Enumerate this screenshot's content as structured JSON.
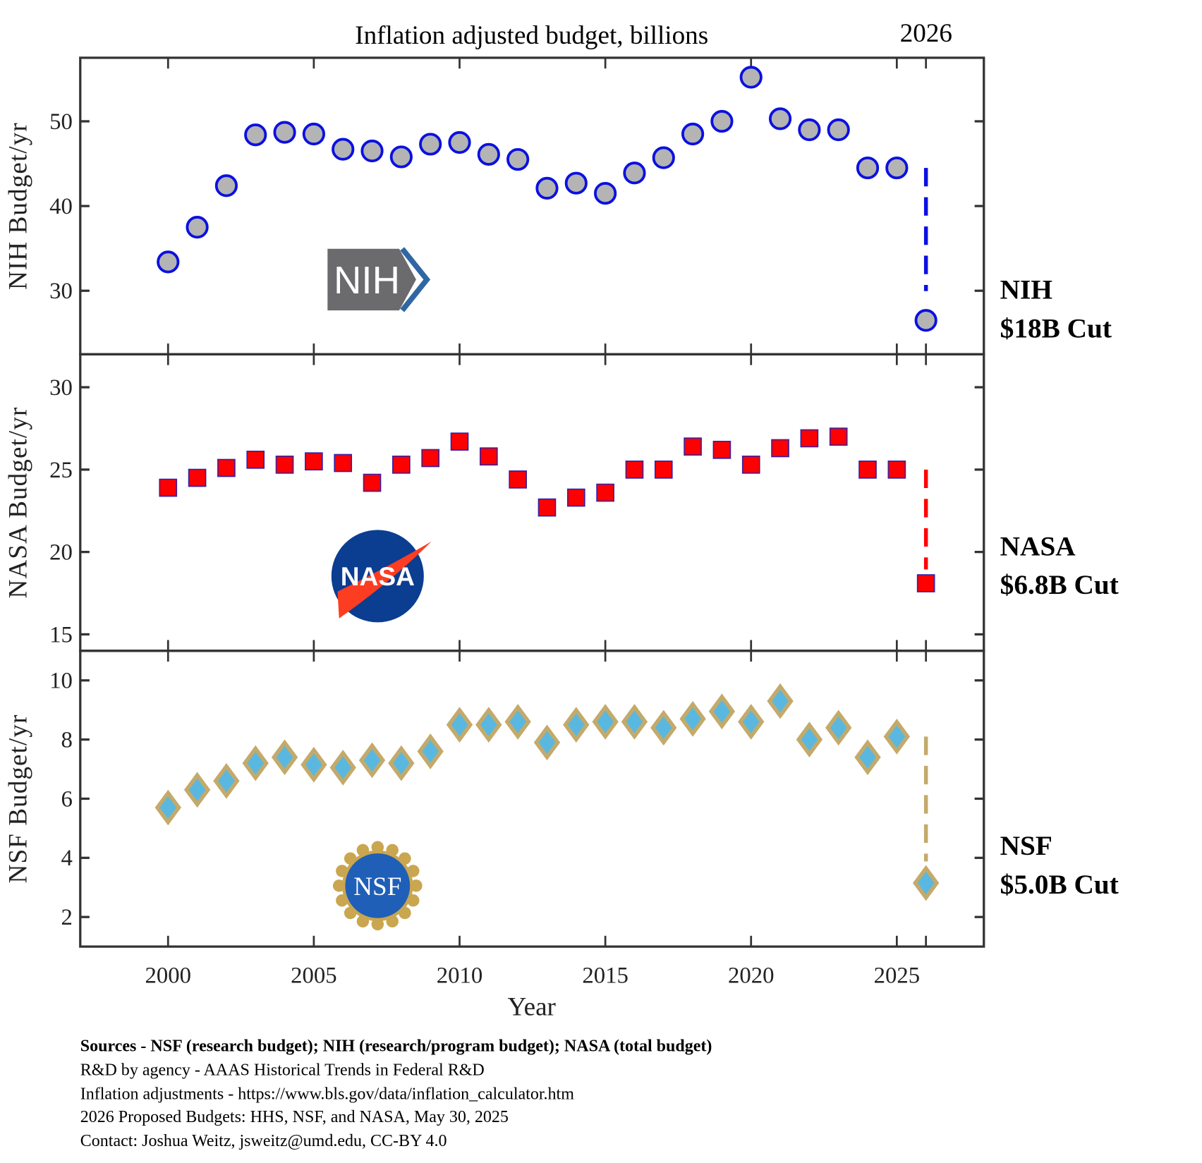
{
  "chart_data": {
    "type": "scatter",
    "title": "Inflation adjusted budget, billions",
    "title_right": "2026",
    "xlabel": "Year",
    "xlim": [
      1997,
      2028
    ],
    "xticks": [
      2000,
      2005,
      2010,
      2015,
      2020,
      2025
    ],
    "x": [
      2000,
      2001,
      2002,
      2003,
      2004,
      2005,
      2006,
      2007,
      2008,
      2009,
      2010,
      2011,
      2012,
      2013,
      2014,
      2015,
      2016,
      2017,
      2018,
      2019,
      2020,
      2021,
      2022,
      2023,
      2024,
      2025,
      2026
    ],
    "panels": [
      {
        "name": "NIH",
        "ylabel": "NIH Budget/yr",
        "ylim": [
          22.5,
          57.5
        ],
        "yticks": [
          30,
          40,
          50
        ],
        "marker": "circle",
        "fill": "#b4b4b4",
        "stroke": "#0b10e0",
        "cut_title": "NIH",
        "cut_label": "$18B Cut",
        "logo": "NIH",
        "values": [
          33.4,
          37.5,
          42.4,
          48.4,
          48.7,
          48.5,
          46.7,
          46.5,
          45.8,
          47.3,
          47.5,
          46.1,
          45.5,
          42.1,
          42.7,
          41.5,
          43.9,
          45.7,
          48.5,
          50.0,
          55.2,
          50.3,
          49.0,
          49.0,
          44.5,
          44.5,
          26.5
        ]
      },
      {
        "name": "NASA",
        "ylabel": "NASA Budget/yr",
        "ylim": [
          14,
          32
        ],
        "yticks": [
          15,
          20,
          25,
          30
        ],
        "marker": "square",
        "fill": "#ff0000",
        "stroke": "#3c1fa0",
        "cut_title": "NASA",
        "cut_label": "$6.8B Cut",
        "logo": "NASA",
        "values": [
          23.9,
          24.5,
          25.1,
          25.6,
          25.3,
          25.5,
          25.4,
          24.2,
          25.3,
          25.7,
          26.7,
          25.8,
          24.4,
          22.7,
          23.3,
          23.6,
          25.0,
          25.0,
          26.4,
          26.2,
          25.3,
          26.3,
          26.9,
          27.0,
          25.0,
          25.0,
          18.1
        ]
      },
      {
        "name": "NSF",
        "ylabel": "NSF Budget/yr",
        "ylim": [
          1,
          11
        ],
        "yticks": [
          2,
          4,
          6,
          8,
          10
        ],
        "marker": "diamond",
        "fill": "#5ab8e0",
        "stroke": "#c4aa6a",
        "cut_title": "NSF",
        "cut_label": "$5.0B Cut",
        "logo": "NSF",
        "values": [
          5.7,
          6.3,
          6.6,
          7.2,
          7.4,
          7.15,
          7.05,
          7.3,
          7.2,
          7.6,
          8.5,
          8.5,
          8.6,
          7.9,
          8.5,
          8.6,
          8.6,
          8.4,
          8.7,
          8.95,
          8.6,
          9.3,
          8.0,
          8.4,
          7.4,
          8.1,
          3.15
        ]
      }
    ]
  },
  "footer": {
    "sources": "Sources - NSF (research budget); NIH (research/program budget); NASA (total budget)",
    "lines": [
      "R&D by agency - AAAS Historical Trends in Federal R&D",
      "Inflation adjustments - https://www.bls.gov/data/inflation_calculator.htm",
      "2026 Proposed Budgets: HHS, NSF, and NASA, May 30, 2025",
      "Contact: Joshua Weitz, jsweitz@umd.edu, CC-BY 4.0"
    ]
  }
}
